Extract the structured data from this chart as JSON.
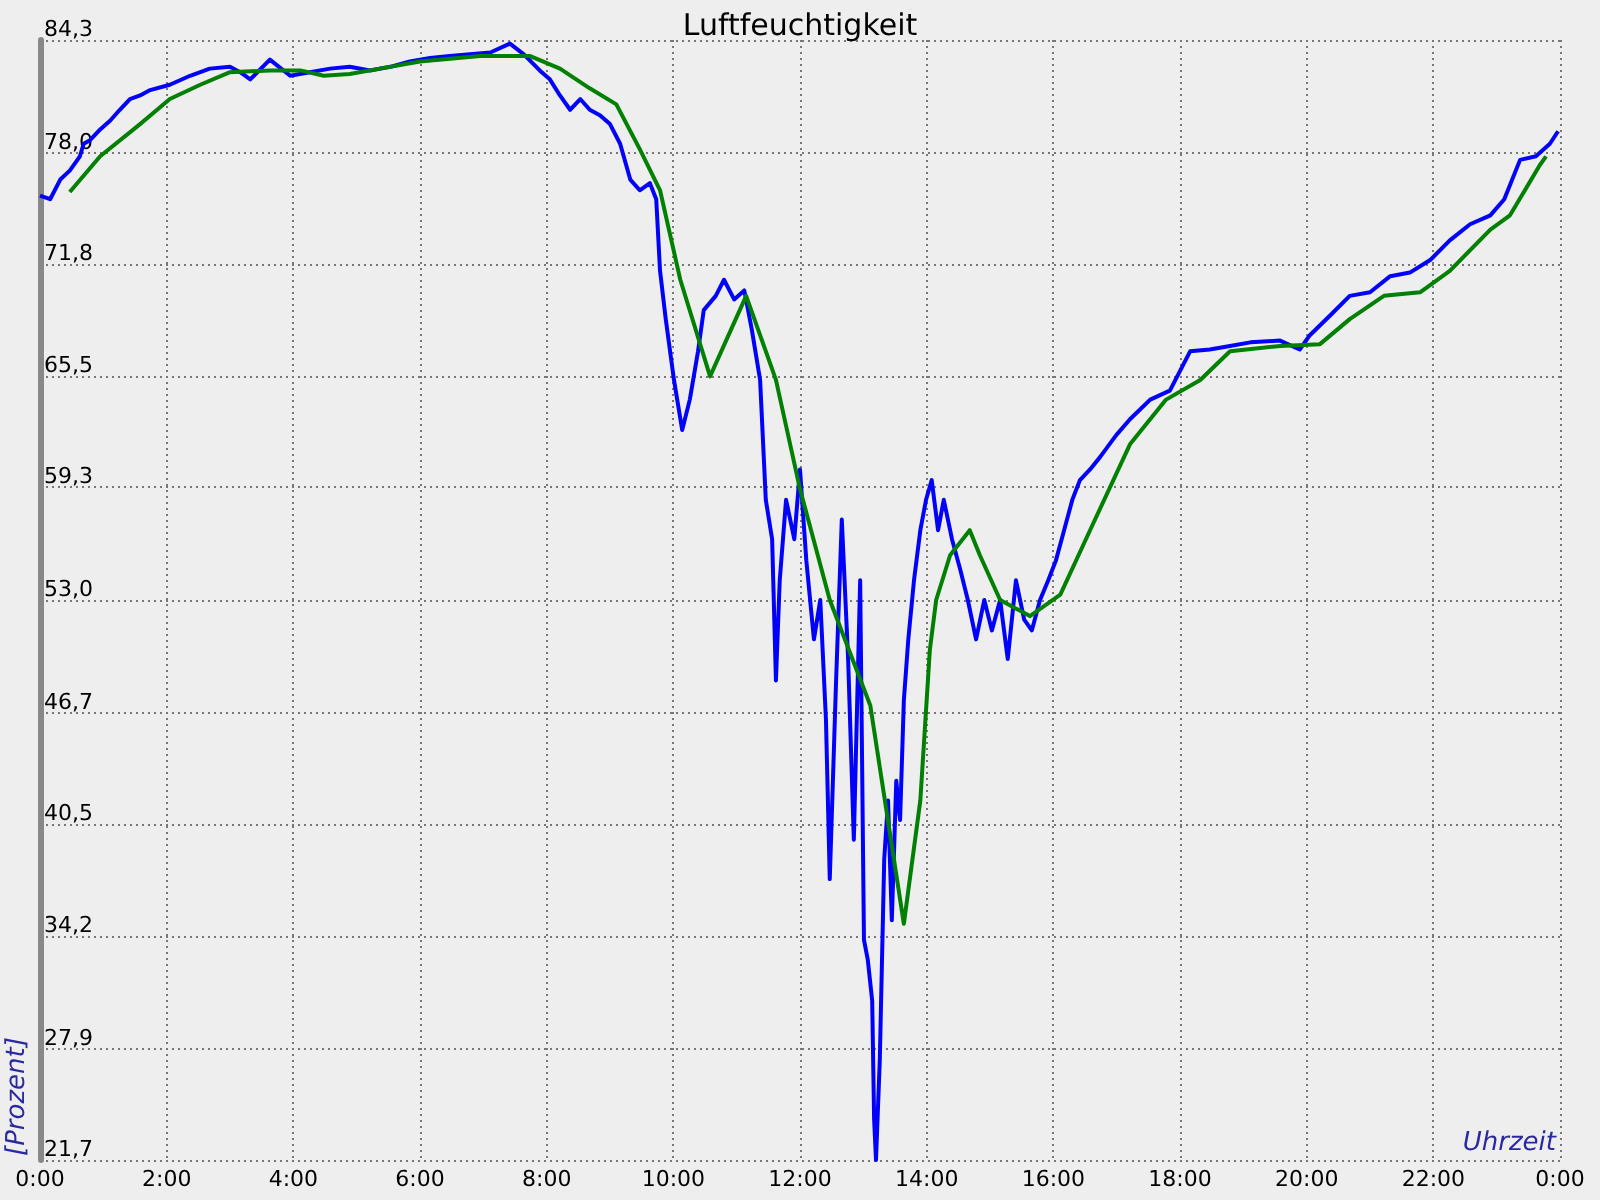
{
  "chart_data": {
    "type": "line",
    "title": "Luftfeuchtigkeit",
    "xlabel": "Uhrzeit",
    "ylabel": "[Prozent]",
    "xlim": [
      0,
      24
    ],
    "ylim": [
      21.7,
      84.3
    ],
    "xticks": [
      {
        "value": 0,
        "label": "0:00"
      },
      {
        "value": 2,
        "label": "2:00"
      },
      {
        "value": 4,
        "label": "4:00"
      },
      {
        "value": 6,
        "label": "6:00"
      },
      {
        "value": 8,
        "label": "8:00"
      },
      {
        "value": 10,
        "label": "10:00"
      },
      {
        "value": 12,
        "label": "12:00"
      },
      {
        "value": 14,
        "label": "14:00"
      },
      {
        "value": 16,
        "label": "16:00"
      },
      {
        "value": 18,
        "label": "18:00"
      },
      {
        "value": 20,
        "label": "20:00"
      },
      {
        "value": 22,
        "label": "22:00"
      },
      {
        "value": 24,
        "label": "0:00"
      }
    ],
    "yticks": [
      {
        "value": 21.7,
        "label": "21,7"
      },
      {
        "value": 27.9,
        "label": "27,9"
      },
      {
        "value": 34.2,
        "label": "34,2"
      },
      {
        "value": 40.5,
        "label": "40,5"
      },
      {
        "value": 46.7,
        "label": "46,7"
      },
      {
        "value": 53.0,
        "label": "53,0"
      },
      {
        "value": 59.3,
        "label": "59,3"
      },
      {
        "value": 65.5,
        "label": "65,5"
      },
      {
        "value": 71.8,
        "label": "71,8"
      },
      {
        "value": 78.0,
        "label": "78,0"
      },
      {
        "value": 84.3,
        "label": "84,3"
      }
    ],
    "grid": true,
    "marker": "none",
    "line_style": "solid",
    "series": [
      {
        "color": "#0000ff",
        "x": [
          0,
          0.16,
          0.32,
          0.47,
          0.63,
          0.69,
          0.79,
          0.95,
          1.11,
          1.26,
          1.42,
          1.58,
          1.74,
          2.05,
          2.37,
          2.68,
          3.0,
          3.16,
          3.32,
          3.63,
          3.95,
          4.26,
          4.58,
          4.89,
          5.21,
          5.53,
          5.84,
          6.16,
          6.47,
          6.79,
          7.11,
          7.42,
          7.64,
          7.89,
          8.05,
          8.21,
          8.37,
          8.53,
          8.68,
          8.84,
          9.0,
          9.16,
          9.32,
          9.47,
          9.63,
          9.73,
          9.79,
          9.88,
          10.01,
          10.14,
          10.26,
          10.39,
          10.48,
          10.67,
          10.8,
          10.96,
          11.12,
          11.24,
          11.37,
          11.46,
          11.56,
          11.62,
          11.68,
          11.78,
          11.91,
          12.0,
          12.1,
          12.22,
          12.32,
          12.41,
          12.47,
          12.57,
          12.66,
          12.76,
          12.85,
          12.95,
          13.01,
          13.07,
          13.14,
          13.17,
          13.2,
          13.26,
          13.33,
          13.39,
          13.45,
          13.52,
          13.58,
          13.64,
          13.71,
          13.8,
          13.9,
          13.99,
          14.08,
          14.18,
          14.27,
          14.4,
          14.53,
          14.65,
          14.78,
          14.91,
          15.03,
          15.16,
          15.28,
          15.41,
          15.54,
          15.66,
          15.79,
          15.92,
          16.04,
          16.17,
          16.3,
          16.42,
          16.58,
          16.74,
          16.99,
          17.21,
          17.53,
          17.84,
          18.16,
          18.47,
          18.79,
          19.11,
          19.58,
          19.89,
          20.05,
          20.37,
          20.68,
          21.0,
          21.32,
          21.63,
          21.95,
          22.26,
          22.58,
          22.9,
          23.12,
          23.37,
          23.62,
          23.84,
          23.97
        ],
        "values": [
          75.6,
          75.4,
          76.5,
          77.0,
          77.8,
          78.5,
          78.7,
          79.3,
          79.8,
          80.4,
          81.0,
          81.2,
          81.5,
          81.8,
          82.3,
          82.7,
          82.8,
          82.5,
          82.1,
          83.2,
          82.3,
          82.5,
          82.7,
          82.8,
          82.6,
          82.8,
          83.1,
          83.3,
          83.4,
          83.5,
          83.6,
          84.1,
          83.5,
          82.6,
          82.1,
          81.2,
          80.4,
          81.0,
          80.4,
          80.1,
          79.6,
          78.5,
          76.5,
          75.9,
          76.3,
          75.4,
          71.4,
          68.7,
          65.3,
          62.5,
          64.2,
          66.9,
          69.2,
          70.0,
          70.9,
          69.8,
          70.3,
          68.1,
          65.3,
          58.6,
          56.4,
          48.5,
          54.1,
          58.6,
          56.4,
          60.3,
          55.2,
          50.8,
          53.0,
          46.3,
          37.4,
          48.5,
          57.5,
          49.7,
          39.6,
          54.1,
          34.0,
          32.9,
          30.6,
          24.0,
          21.7,
          27.3,
          38.5,
          41.8,
          35.1,
          42.9,
          40.7,
          47.4,
          50.8,
          54.1,
          56.9,
          58.6,
          59.7,
          56.9,
          58.6,
          56.4,
          54.7,
          53.0,
          50.8,
          53.0,
          51.3,
          53.0,
          49.7,
          54.1,
          51.9,
          51.3,
          53.0,
          54.1,
          55.2,
          56.9,
          58.6,
          59.7,
          60.3,
          61.0,
          62.2,
          63.1,
          64.2,
          64.7,
          66.9,
          67.0,
          67.2,
          67.4,
          67.5,
          67.0,
          67.8,
          68.9,
          70.0,
          70.2,
          71.1,
          71.3,
          72.0,
          73.1,
          74.0,
          74.5,
          75.4,
          77.6,
          77.8,
          78.5,
          79.2
        ]
      },
      {
        "color": "#008000",
        "x": [
          0.47,
          0.95,
          1.58,
          2.05,
          2.53,
          3.0,
          3.63,
          4.11,
          4.48,
          4.89,
          5.37,
          6.0,
          6.95,
          7.74,
          8.21,
          8.68,
          9.1,
          9.47,
          9.79,
          10.11,
          10.58,
          11.15,
          11.62,
          12.0,
          12.47,
          13.11,
          13.64,
          13.9,
          14.05,
          14.15,
          14.37,
          14.68,
          14.84,
          15.16,
          15.63,
          16.11,
          16.58,
          17.21,
          17.78,
          18.32,
          18.79,
          19.58,
          20.21,
          20.68,
          21.22,
          21.79,
          22.26,
          22.9,
          23.21,
          23.68,
          23.78
        ],
        "values": [
          75.8,
          77.8,
          79.6,
          81.0,
          81.8,
          82.5,
          82.6,
          82.6,
          82.3,
          82.4,
          82.7,
          83.1,
          83.4,
          83.4,
          82.7,
          81.6,
          80.7,
          78.2,
          75.9,
          70.9,
          65.5,
          70.0,
          65.3,
          59.2,
          53.0,
          47.1,
          34.9,
          41.8,
          50.2,
          53.0,
          55.5,
          56.9,
          55.5,
          53.0,
          52.1,
          53.3,
          56.9,
          61.7,
          64.2,
          65.3,
          66.9,
          67.2,
          67.3,
          68.7,
          70.0,
          70.2,
          71.4,
          73.7,
          74.5,
          77.3,
          77.8
        ]
      }
    ]
  }
}
